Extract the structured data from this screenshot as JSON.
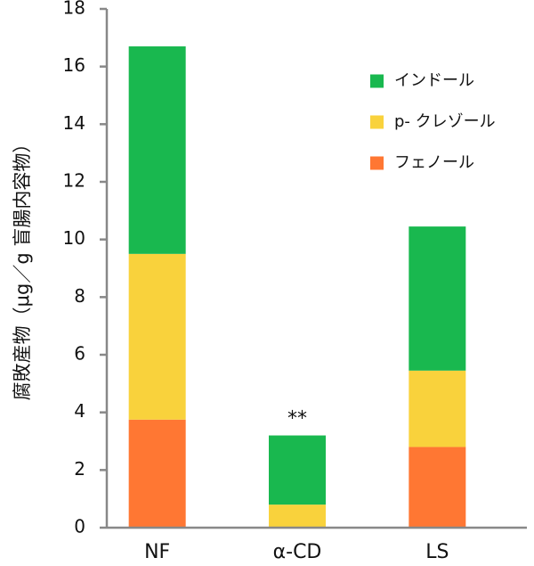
{
  "chart_data": {
    "type": "bar",
    "stacked": true,
    "categories": [
      "NF",
      "α-CD",
      "LS"
    ],
    "series": [
      {
        "name": "フェノール",
        "color": "#FF7733",
        "values": [
          3.75,
          0,
          2.8
        ]
      },
      {
        "name": "p- クレゾール",
        "color": "#F9D23C",
        "values": [
          5.75,
          0.8,
          2.65
        ]
      },
      {
        "name": "インドール",
        "color": "#19B84F",
        "values": [
          7.2,
          2.4,
          5.0
        ]
      }
    ],
    "legend_order": [
      2,
      1,
      0
    ],
    "legend_position": "top-right",
    "title": "",
    "xlabel": "",
    "ylabel": "腐敗産物（μg／g 盲腸内容物）",
    "ylim": [
      0,
      18
    ],
    "yticks": [
      0,
      2,
      4,
      6,
      8,
      10,
      12,
      14,
      16,
      18
    ],
    "grid": false,
    "annotations": [
      {
        "category": "α-CD",
        "text": "**"
      }
    ]
  }
}
